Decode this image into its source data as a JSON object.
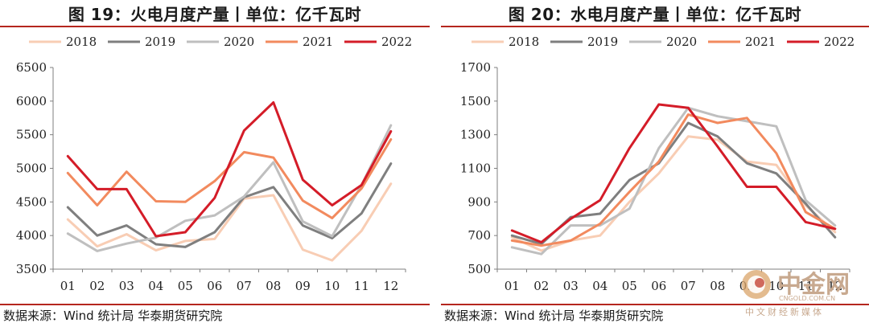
{
  "colors": {
    "accent_rule": "#b5261e",
    "series_2018": "#f8cdb4",
    "series_2019": "#7f7f7f",
    "series_2020": "#bfbfbf",
    "series_2021": "#f28a5e",
    "series_2022": "#d41c28"
  },
  "left": {
    "title": "图 19：火电月度产量丨单位：亿千瓦时",
    "source": "数据来源：Wind  统计局  华泰期货研究院"
  },
  "right": {
    "title": "图 20：水电月度产量丨单位：亿千瓦时",
    "source": "数据来源：Wind  统计局  华泰期货研究院"
  },
  "watermark": {
    "logo_text": "中金网",
    "url": "CNGOLD.COM.CN",
    "subtitle": "中文财经新媒体",
    "icon": "cngold-logo-icon"
  },
  "chart_data": [
    {
      "type": "line",
      "title": "图 19：火电月度产量丨单位：亿千瓦时",
      "xlabel": "",
      "ylabel": "",
      "x": [
        "01",
        "02",
        "03",
        "04",
        "05",
        "06",
        "07",
        "08",
        "09",
        "10",
        "11",
        "12"
      ],
      "ylim": [
        3500,
        6500
      ],
      "yticks": [
        3500,
        4000,
        4500,
        5000,
        5500,
        6000,
        6500
      ],
      "grid": false,
      "legend_position": "top",
      "series": [
        {
          "name": "2018",
          "values": [
            4240,
            3840,
            4020,
            3780,
            3920,
            3950,
            4550,
            4600,
            3790,
            3630,
            4070,
            4770
          ]
        },
        {
          "name": "2019",
          "values": [
            4420,
            4000,
            4150,
            3870,
            3830,
            4050,
            4570,
            4720,
            4150,
            3960,
            4330,
            5070
          ]
        },
        {
          "name": "2020",
          "values": [
            4030,
            3770,
            3880,
            3970,
            4220,
            4300,
            4580,
            5090,
            4210,
            3990,
            4750,
            5640
          ]
        },
        {
          "name": "2021",
          "values": [
            4930,
            4450,
            4950,
            4510,
            4500,
            4810,
            5240,
            5160,
            4520,
            4260,
            4700,
            5430
          ]
        },
        {
          "name": "2022",
          "values": [
            5180,
            4690,
            4690,
            3990,
            4050,
            4560,
            5560,
            5980,
            4830,
            4450,
            4750,
            5550
          ]
        }
      ]
    },
    {
      "type": "line",
      "title": "图 20：水电月度产量丨单位：亿千瓦时",
      "xlabel": "",
      "ylabel": "",
      "x": [
        "01",
        "02",
        "03",
        "04",
        "05",
        "06",
        "07",
        "08",
        "09",
        "10",
        "11",
        "12"
      ],
      "ylim": [
        500,
        1700
      ],
      "yticks": [
        500,
        700,
        900,
        1100,
        1300,
        1500,
        1700
      ],
      "grid": false,
      "legend_position": "top",
      "series": [
        {
          "name": "2018",
          "values": [
            690,
            610,
            670,
            700,
            900,
            1070,
            1290,
            1270,
            1140,
            1120,
            880,
            720
          ]
        },
        {
          "name": "2019",
          "values": [
            700,
            650,
            810,
            830,
            1030,
            1130,
            1370,
            1290,
            1130,
            1070,
            890,
            690
          ]
        },
        {
          "name": "2020",
          "values": [
            630,
            590,
            760,
            760,
            860,
            1220,
            1460,
            1410,
            1380,
            1350,
            910,
            760
          ]
        },
        {
          "name": "2021",
          "values": [
            670,
            640,
            670,
            770,
            960,
            1140,
            1420,
            1370,
            1400,
            1190,
            840,
            740
          ]
        },
        {
          "name": "2022",
          "values": [
            730,
            660,
            800,
            910,
            1220,
            1480,
            1460,
            1230,
            990,
            990,
            780,
            740
          ]
        }
      ]
    }
  ]
}
